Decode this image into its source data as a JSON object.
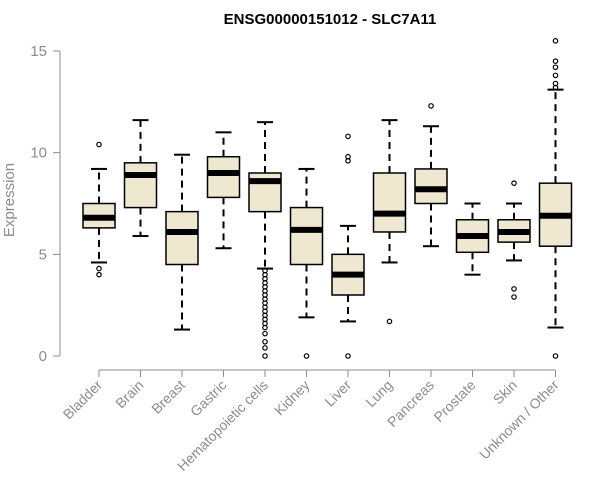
{
  "chart_data": {
    "type": "box",
    "title": "ENSG00000151012 - SLC7A11",
    "xlabel": "",
    "ylabel": "Expression",
    "ylim": [
      0,
      15.5
    ],
    "yticks": [
      0,
      5,
      10,
      15
    ],
    "colors": {
      "box_fill": "#efe8d0",
      "stroke": "#000000",
      "axis": "#8c8c8c"
    },
    "series": [
      {
        "name": "Bladder",
        "q1": 6.3,
        "median": 6.8,
        "q3": 7.5,
        "whisker_low": 4.6,
        "whisker_high": 9.2,
        "outliers": [
          10.4,
          4.3,
          4.0
        ]
      },
      {
        "name": "Brain",
        "q1": 7.3,
        "median": 8.9,
        "q3": 9.5,
        "whisker_low": 5.9,
        "whisker_high": 11.6,
        "outliers": []
      },
      {
        "name": "Breast",
        "q1": 4.5,
        "median": 6.1,
        "q3": 7.1,
        "whisker_low": 1.3,
        "whisker_high": 9.9,
        "outliers": []
      },
      {
        "name": "Gastric",
        "q1": 7.8,
        "median": 9.0,
        "q3": 9.8,
        "whisker_low": 5.3,
        "whisker_high": 11.0,
        "outliers": []
      },
      {
        "name": "Hematopoietic cells",
        "q1": 7.1,
        "median": 8.6,
        "q3": 9.0,
        "whisker_low": 4.3,
        "whisker_high": 11.5,
        "outliers": [
          4.2,
          4.0,
          3.8,
          3.6,
          3.4,
          3.2,
          3.0,
          2.8,
          2.6,
          2.4,
          2.2,
          2.0,
          1.8,
          1.6,
          1.4,
          1.1,
          0.7,
          0.4,
          0.0
        ]
      },
      {
        "name": "Kidney",
        "q1": 4.5,
        "median": 6.2,
        "q3": 7.3,
        "whisker_low": 1.9,
        "whisker_high": 9.2,
        "outliers": [
          0.0
        ]
      },
      {
        "name": "Liver",
        "q1": 3.0,
        "median": 4.0,
        "q3": 5.0,
        "whisker_low": 1.7,
        "whisker_high": 6.4,
        "outliers": [
          10.8,
          9.8,
          9.6,
          0.0
        ]
      },
      {
        "name": "Lung",
        "q1": 6.1,
        "median": 7.0,
        "q3": 9.0,
        "whisker_low": 4.6,
        "whisker_high": 11.6,
        "outliers": [
          1.7
        ]
      },
      {
        "name": "Pancreas",
        "q1": 7.5,
        "median": 8.2,
        "q3": 9.2,
        "whisker_low": 5.4,
        "whisker_high": 11.3,
        "outliers": [
          12.3
        ]
      },
      {
        "name": "Prostate",
        "q1": 5.1,
        "median": 5.9,
        "q3": 6.7,
        "whisker_low": 4.0,
        "whisker_high": 7.5,
        "outliers": []
      },
      {
        "name": "Skin",
        "q1": 5.6,
        "median": 6.1,
        "q3": 6.7,
        "whisker_low": 4.7,
        "whisker_high": 7.5,
        "outliers": [
          8.5,
          3.3,
          2.9
        ]
      },
      {
        "name": "Unknown / Other",
        "q1": 5.4,
        "median": 6.9,
        "q3": 8.5,
        "whisker_low": 1.4,
        "whisker_high": 13.1,
        "outliers": [
          15.5,
          14.5,
          14.2,
          13.8,
          13.4,
          13.2,
          0.0
        ]
      }
    ]
  }
}
